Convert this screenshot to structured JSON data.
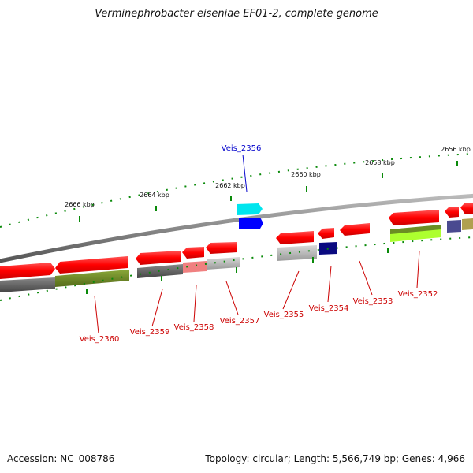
{
  "title": "Verminephrobacter eiseniae EF01-2, complete genome",
  "footer": {
    "accession": "Accession: NC_008786",
    "summary": "Topology: circular; Length: 5,566,749 bp; Genes: 4,966"
  },
  "colors": {
    "gene_red": "#ff0000",
    "highlight_blue": "#0000ff",
    "highlight_cyan": "#00e5ee",
    "navy": "#0a0a80",
    "olive": "#6b8e23",
    "lime": "#9acd32",
    "gray": "#666666",
    "light_gray": "#bbbbbb",
    "pink": "#f08080",
    "tick_green": "#008000",
    "backbone": "#888888"
  },
  "kbp_labels": [
    "2666 kbp",
    "2664 kbp",
    "2662 kbp",
    "2660 kbp",
    "2658 kbp",
    "2656 kbp"
  ],
  "highlight_gene": "Veis_2356",
  "gene_labels": [
    "Veis_2360",
    "Veis_2359",
    "Veis_2358",
    "Veis_2357",
    "Veis_2355",
    "Veis_2354",
    "Veis_2353",
    "Veis_2352"
  ]
}
